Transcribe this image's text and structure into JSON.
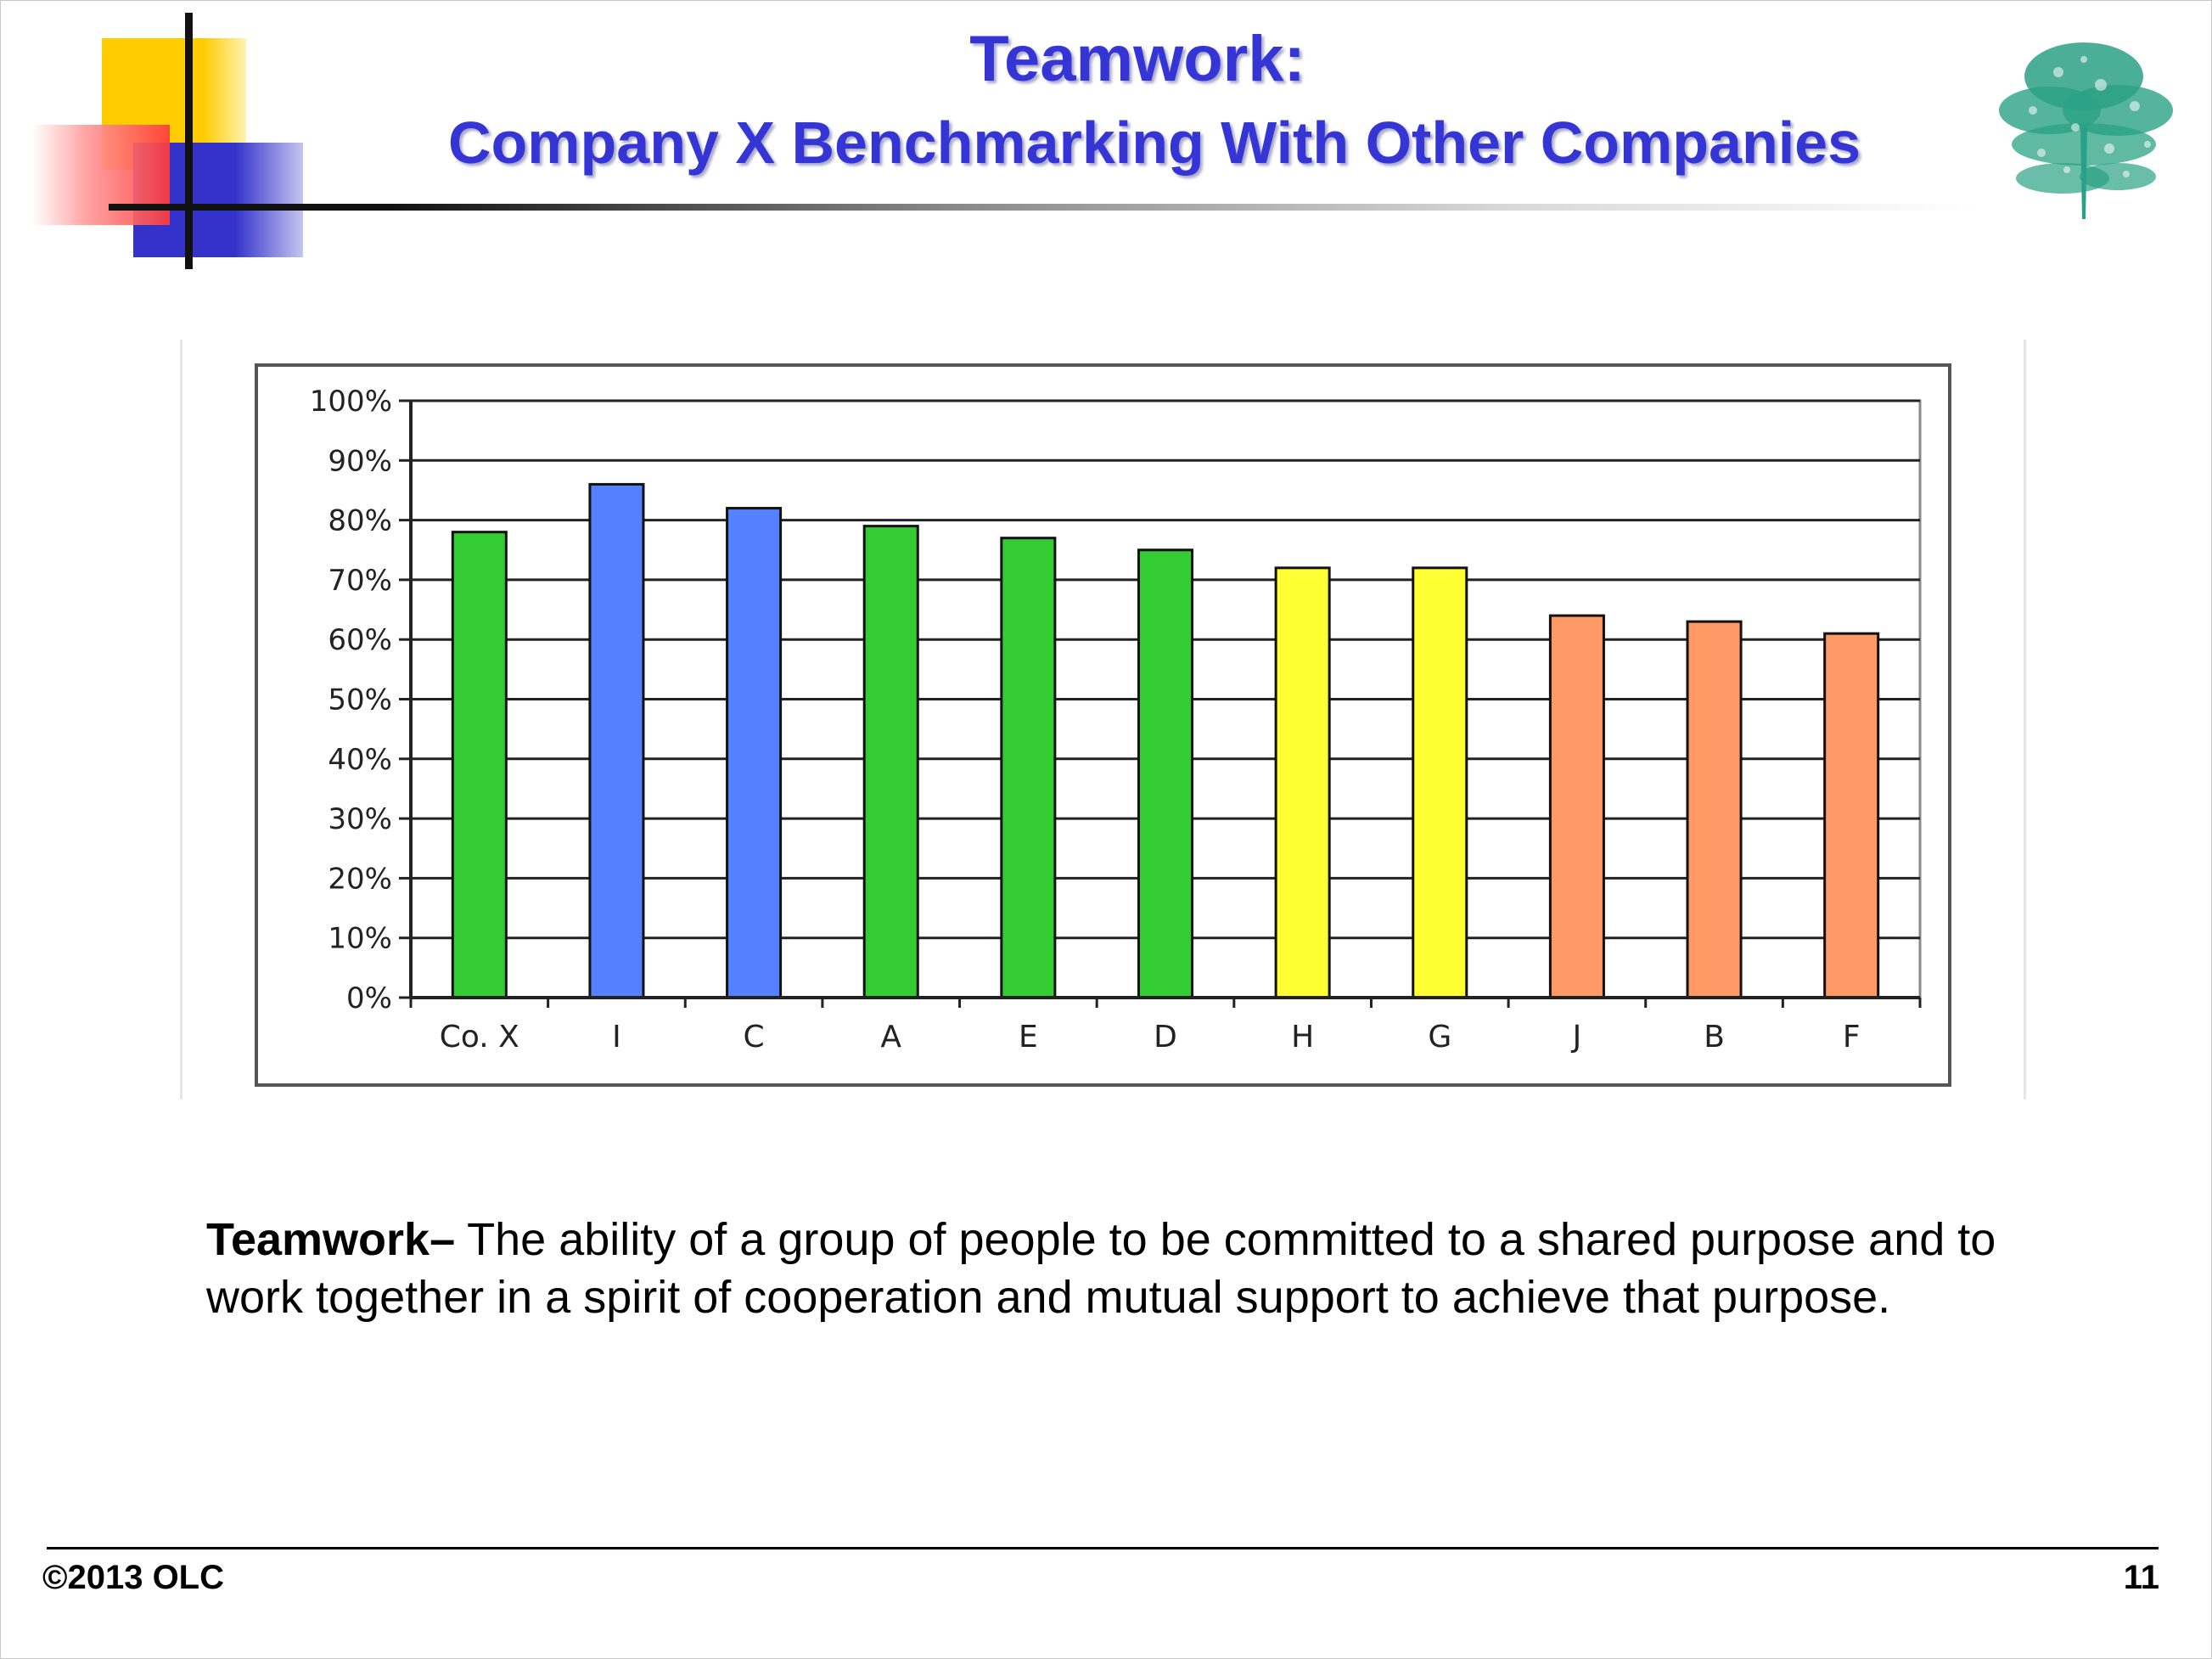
{
  "slide": {
    "title_line1": "Teamwork:",
    "title_line2": "Company X Benchmarking With Other Companies"
  },
  "definition": {
    "term": "Teamwork–",
    "text": " The ability of a group of people to be committed to a shared purpose and to work together in a spirit of cooperation and mutual support to achieve that purpose."
  },
  "footer": {
    "copyright": "©2013 OLC",
    "page_number": "11"
  },
  "icons": {
    "corner_logo": "colored-squares-logo-icon",
    "tree_logo": "tree-icon"
  },
  "colors": {
    "title": "#3535d6",
    "green": "#33cc33",
    "blue": "#5580ff",
    "yellow": "#ffff33",
    "orange": "#ff9966"
  },
  "chart_data": {
    "type": "bar",
    "categories": [
      "Co. X",
      "I",
      "C",
      "A",
      "E",
      "D",
      "H",
      "G",
      "J",
      "B",
      "F"
    ],
    "values": [
      78,
      86,
      82,
      79,
      77,
      75,
      72,
      72,
      64,
      63,
      61
    ],
    "bar_colors": [
      "#33cc33",
      "#5580ff",
      "#5580ff",
      "#33cc33",
      "#33cc33",
      "#33cc33",
      "#ffff33",
      "#ffff33",
      "#ff9966",
      "#ff9966",
      "#ff9966"
    ],
    "y_ticks": [
      "0%",
      "10%",
      "20%",
      "30%",
      "40%",
      "50%",
      "60%",
      "70%",
      "80%",
      "90%",
      "100%"
    ],
    "ylim": [
      0,
      100
    ],
    "grid": true,
    "title": "",
    "xlabel": "",
    "ylabel": ""
  }
}
